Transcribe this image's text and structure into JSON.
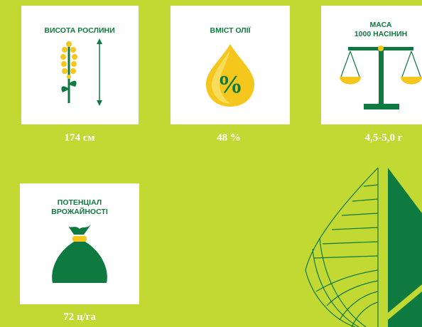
{
  "cards": [
    {
      "title": [
        "ВИСОТА РОСЛИНИ"
      ],
      "value": "174 см"
    },
    {
      "title": [
        "ВМІСТ ОЛІЇ"
      ],
      "icon_text": "%",
      "value": "48 %"
    },
    {
      "title": [
        "МАСА",
        "1000 НАСІНИН"
      ],
      "value": "4,5-5,0 г"
    },
    {
      "title": [
        "ПОТЕНЦІАЛ",
        "ВРОЖАЙНОСТІ"
      ],
      "value": "72 ц/га"
    }
  ]
}
